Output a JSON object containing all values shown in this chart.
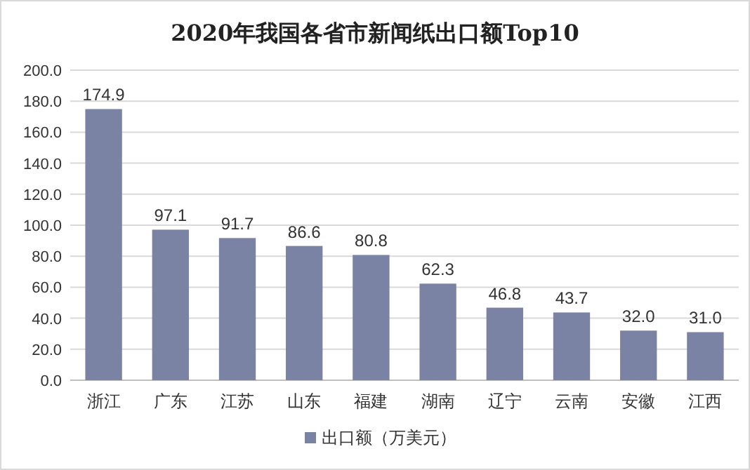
{
  "chart_data": {
    "type": "bar",
    "title": "2020年我国各省市新闻纸出口额Top10",
    "categories": [
      "浙江",
      "广东",
      "江苏",
      "山东",
      "福建",
      "湖南",
      "辽宁",
      "云南",
      "安徽",
      "江西"
    ],
    "series": [
      {
        "name": "出口额（万美元）",
        "color": "#7b83a5",
        "values": [
          174.9,
          97.1,
          91.7,
          86.6,
          80.8,
          62.3,
          46.8,
          43.7,
          32.0,
          31.0
        ]
      }
    ],
    "ylim": [
      0,
      200
    ],
    "yticks": [
      {
        "value": 0,
        "label": "0.0"
      },
      {
        "value": 20,
        "label": "20.0"
      },
      {
        "value": 40,
        "label": "40.0"
      },
      {
        "value": 60,
        "label": "60.0"
      },
      {
        "value": 80,
        "label": "80.0"
      },
      {
        "value": 100,
        "label": "100.0"
      },
      {
        "value": 120,
        "label": "120.0"
      },
      {
        "value": 140,
        "label": "140.0"
      },
      {
        "value": 160,
        "label": "160.0"
      },
      {
        "value": 180,
        "label": "180.0"
      },
      {
        "value": 200,
        "label": "200.0"
      }
    ],
    "value_labels": [
      "174.9",
      "97.1",
      "91.7",
      "86.6",
      "80.8",
      "62.3",
      "46.8",
      "43.7",
      "32.0",
      "31.0"
    ],
    "grid": "y",
    "legend": "bottom"
  }
}
